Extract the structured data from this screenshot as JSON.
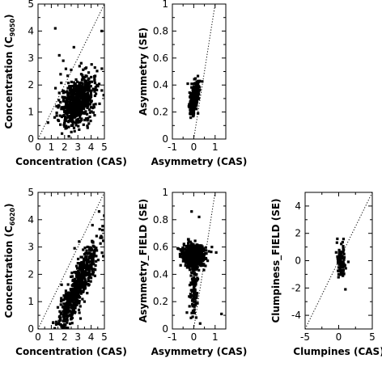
{
  "chart_data": [
    {
      "type": "scatter",
      "xlabel": "Concentration (CAS)",
      "ylabel": "Concentration (C",
      "ylabel_sub": "9050",
      "ylabel_close": ")",
      "xlim": [
        0,
        5
      ],
      "ylim": [
        0,
        5
      ],
      "xticks": [
        0,
        1,
        2,
        3,
        4,
        5
      ],
      "yticks": [
        0,
        1,
        2,
        3,
        4,
        5
      ],
      "reference_line": "y = x",
      "cloud": {
        "x_mean": 3.0,
        "x_sd": 0.65,
        "y_slope": 0.3,
        "y_intercept": 0.5,
        "y_sd": 0.45,
        "n": 700
      },
      "outliers": [
        {
          "x": 1.3,
          "y": 4.1
        },
        {
          "x": 2.7,
          "y": 3.4
        },
        {
          "x": 1.6,
          "y": 3.1
        },
        {
          "x": 1.9,
          "y": 2.9
        },
        {
          "x": 4.8,
          "y": 4.0
        },
        {
          "x": 2.1,
          "y": 2.6
        },
        {
          "x": 1.7,
          "y": 2.4
        }
      ]
    },
    {
      "type": "scatter",
      "xlabel": "Asymmetry (CAS)",
      "ylabel": "Asymmetry (SE)",
      "xlim": [
        -1,
        1.5
      ],
      "ylim": [
        0,
        1
      ],
      "xticks": [
        -1,
        0,
        1
      ],
      "yticks": [
        0,
        0.2,
        0.4,
        0.6,
        0.8,
        1
      ],
      "reference_line": "y = x",
      "cloud": {
        "x_mean": 0.02,
        "x_sd": 0.1,
        "y_slope": 0.3,
        "y_intercept": 0.29,
        "y_sd": 0.045,
        "n": 450
      },
      "outliers": [
        {
          "x": -0.28,
          "y": 0.41
        },
        {
          "x": 0.28,
          "y": 0.43
        },
        {
          "x": 0.2,
          "y": 0.19
        }
      ]
    },
    {
      "type": "scatter",
      "xlabel": "Concentration (CAS)",
      "ylabel": "Concentration (C",
      "ylabel_sub": "6020",
      "ylabel_close": ")",
      "xlim": [
        0,
        5
      ],
      "ylim": [
        0,
        5
      ],
      "xticks": [
        0,
        1,
        2,
        3,
        4,
        5
      ],
      "yticks": [
        0,
        1,
        2,
        3,
        4,
        5
      ],
      "reference_line": "y = x",
      "cloud": {
        "x_mean": 3.0,
        "x_sd": 0.75,
        "y_slope": 0.95,
        "y_intercept": -1.3,
        "y_sd": 0.4,
        "n": 650
      },
      "outliers": [
        {
          "x": 3.1,
          "y": 3.2
        },
        {
          "x": 3.4,
          "y": 2.9
        },
        {
          "x": 4.1,
          "y": 3.8
        },
        {
          "x": 4.6,
          "y": 4.3
        }
      ]
    },
    {
      "type": "scatter",
      "xlabel": "Asymmetry (CAS)",
      "ylabel": "Asymmetry_FIELD (SE)",
      "xlim": [
        -1,
        1.5
      ],
      "ylim": [
        0,
        1
      ],
      "xticks": [
        -1,
        0,
        1
      ],
      "yticks": [
        0,
        0.2,
        0.4,
        0.6,
        0.8,
        1
      ],
      "reference_line": "y = x",
      "cloud": {
        "x_mean": 0.0,
        "x_sd": 0.22,
        "y_slope": 0.0,
        "y_intercept": 0.54,
        "y_sd": 0.035,
        "n": 1100
      },
      "secondary_cloud": {
        "x_mean": 0.0,
        "x_sd": 0.09,
        "y_mean": 0.3,
        "y_sd": 0.1,
        "n": 110
      },
      "outliers": [
        {
          "x": -0.75,
          "y": 0.59
        },
        {
          "x": 0.85,
          "y": 0.6
        },
        {
          "x": 1.05,
          "y": 0.56
        },
        {
          "x": 0.25,
          "y": 0.82
        },
        {
          "x": 1.3,
          "y": 0.11
        },
        {
          "x": 0.3,
          "y": 0.04
        },
        {
          "x": -0.32,
          "y": 0.12
        },
        {
          "x": -0.1,
          "y": 0.86
        }
      ]
    },
    {
      "type": "scatter",
      "xlabel": "Clumpines (CAS)",
      "ylabel": "Clumpiness_FIELD (SE)",
      "xlim": [
        -5,
        5
      ],
      "ylim": [
        -5,
        5
      ],
      "xticks": [
        -5,
        0,
        5
      ],
      "yticks": [
        -4,
        -2,
        0,
        2,
        4
      ],
      "reference_line": "y = x",
      "cloud": {
        "x_mean": 0.4,
        "x_sd": 0.35,
        "y_slope": 0.0,
        "y_intercept": 0.1,
        "y_sd": 0.65,
        "n": 90
      },
      "outliers": [
        {
          "x": 1.0,
          "y": -2.1
        },
        {
          "x": -0.2,
          "y": 1.6
        }
      ]
    }
  ]
}
